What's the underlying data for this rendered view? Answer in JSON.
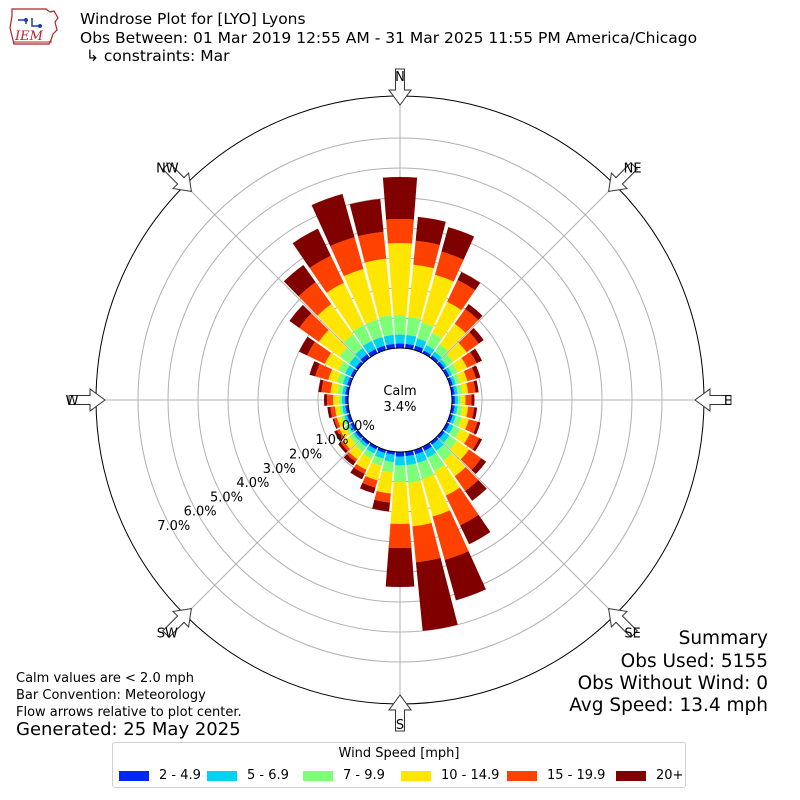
{
  "title": {
    "line1": "Windrose Plot for [LYO] Lyons",
    "line2": "Obs Between: 01 Mar 2019 12:55 AM - 31 Mar 2025 11:55 PM America/Chicago",
    "line3": "↳ constraints: Mar"
  },
  "logo": {
    "text": "IEM"
  },
  "notes": [
    "Calm values are < 2.0 mph",
    "Bar Convention: Meteorology",
    "Flow arrows relative to plot center."
  ],
  "generated": "Generated: 25 May 2025",
  "summary": [
    "Summary",
    "Obs Used: 5155",
    "Obs Without Wind: 0",
    "Avg Speed: 13.4 mph"
  ],
  "chart_data": {
    "type": "windrose",
    "calm": {
      "label": "Calm",
      "value_label": "3.4%",
      "percent": 3.4
    },
    "compass_labels": [
      "N",
      "NE",
      "E",
      "SE",
      "S",
      "SW",
      "W",
      "NW"
    ],
    "radial_ticks": [
      {
        "value": 0,
        "label": "0.0%"
      },
      {
        "value": 1,
        "label": "1.0%"
      },
      {
        "value": 2,
        "label": "2.0%"
      },
      {
        "value": 3,
        "label": "3.0%"
      },
      {
        "value": 4,
        "label": "4.0%"
      },
      {
        "value": 5,
        "label": "5.0%"
      },
      {
        "value": 6,
        "label": "6.0%"
      },
      {
        "value": 7,
        "label": "7.0%"
      }
    ],
    "rmax": 8.4,
    "legend_title": "Wind Speed [mph]",
    "bins": [
      {
        "label": "2 - 4.9",
        "color": "#0027f5"
      },
      {
        "label": "5 - 6.9",
        "color": "#00d2f0"
      },
      {
        "label": "7 - 9.9",
        "color": "#7dff7a"
      },
      {
        "label": "10 - 14.9",
        "color": "#ffe600"
      },
      {
        "label": "15 - 19.9",
        "color": "#ff4100"
      },
      {
        "label": "20+",
        "color": "#800000"
      }
    ],
    "directions_deg": [
      0,
      10,
      20,
      30,
      40,
      50,
      60,
      70,
      80,
      90,
      100,
      110,
      120,
      130,
      140,
      150,
      160,
      170,
      180,
      190,
      200,
      210,
      220,
      230,
      240,
      250,
      260,
      270,
      280,
      290,
      300,
      310,
      320,
      330,
      340,
      350
    ],
    "cumulative_percent": [
      [
        0.15,
        0.45,
        1.1,
        3.5,
        4.3,
        5.7
      ],
      [
        0.15,
        0.45,
        1.05,
        2.8,
        3.6,
        4.4
      ],
      [
        0.15,
        0.4,
        0.95,
        2.6,
        3.4,
        4.25
      ],
      [
        0.1,
        0.3,
        0.75,
        1.9,
        2.7,
        3.0
      ],
      [
        0.1,
        0.25,
        0.55,
        1.4,
        2.0,
        2.2
      ],
      [
        0.1,
        0.2,
        0.45,
        1.0,
        1.5,
        1.7
      ],
      [
        0.1,
        0.2,
        0.4,
        0.75,
        1.1,
        1.3
      ],
      [
        0.1,
        0.2,
        0.35,
        0.6,
        0.9,
        1.05
      ],
      [
        0.1,
        0.2,
        0.35,
        0.55,
        0.8,
        0.9
      ],
      [
        0.1,
        0.2,
        0.3,
        0.45,
        0.65,
        0.75
      ],
      [
        0.1,
        0.2,
        0.35,
        0.55,
        0.75,
        0.85
      ],
      [
        0.1,
        0.2,
        0.4,
        0.65,
        0.95,
        1.05
      ],
      [
        0.1,
        0.25,
        0.5,
        0.85,
        1.2,
        1.3
      ],
      [
        0.1,
        0.3,
        0.6,
        1.1,
        1.6,
        1.8
      ],
      [
        0.1,
        0.35,
        0.75,
        1.4,
        2.0,
        2.4
      ],
      [
        0.15,
        0.4,
        0.9,
        1.8,
        2.9,
        3.6
      ],
      [
        0.15,
        0.45,
        1.0,
        2.3,
        3.8,
        5.2
      ],
      [
        0.15,
        0.45,
        1.05,
        2.5,
        3.7,
        6.0
      ],
      [
        0.15,
        0.45,
        1.0,
        2.4,
        3.2,
        4.5
      ],
      [
        0.1,
        0.35,
        0.7,
        1.4,
        1.7,
        2.0
      ],
      [
        0.1,
        0.3,
        0.55,
        1.05,
        1.3,
        1.5
      ],
      [
        0.1,
        0.25,
        0.45,
        0.85,
        1.0,
        1.2
      ],
      [
        0.1,
        0.2,
        0.4,
        0.7,
        0.8,
        0.95
      ],
      [
        0.1,
        0.2,
        0.35,
        0.6,
        0.7,
        0.8
      ],
      [
        0.1,
        0.2,
        0.3,
        0.5,
        0.6,
        0.7
      ],
      [
        0.1,
        0.2,
        0.3,
        0.45,
        0.55,
        0.6
      ],
      [
        0.1,
        0.2,
        0.3,
        0.45,
        0.6,
        0.7
      ],
      [
        0.1,
        0.2,
        0.3,
        0.5,
        0.7,
        0.8
      ],
      [
        0.1,
        0.2,
        0.35,
        0.6,
        0.9,
        1.0
      ],
      [
        0.1,
        0.25,
        0.45,
        0.75,
        1.2,
        1.4
      ],
      [
        0.1,
        0.3,
        0.55,
        1.05,
        1.7,
        2.0
      ],
      [
        0.1,
        0.35,
        0.75,
        1.6,
        2.4,
        2.8
      ],
      [
        0.15,
        0.4,
        0.95,
        2.2,
        3.1,
        3.8
      ],
      [
        0.15,
        0.45,
        1.05,
        2.6,
        3.6,
        4.6
      ],
      [
        0.15,
        0.45,
        1.05,
        2.8,
        3.9,
        5.4
      ],
      [
        0.15,
        0.45,
        1.1,
        3.0,
        3.9,
        5.0
      ]
    ]
  }
}
